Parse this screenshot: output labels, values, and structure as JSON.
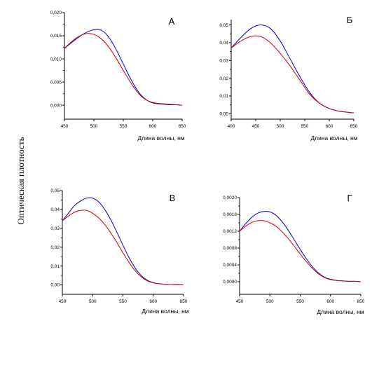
{
  "figure": {
    "ylabel": "Оптическая плотность"
  },
  "chart_data": [
    {
      "type": "line",
      "panel_label": "А",
      "xlabel": "Длина волны, нм",
      "xlim": [
        450,
        650
      ],
      "ylim": [
        -0.003,
        0.02
      ],
      "xticks": [
        "450",
        "500",
        "550",
        "600",
        "650"
      ],
      "yticks": [
        "0,000",
        "0,005",
        "0,010",
        "0,015",
        "0,020"
      ],
      "x": [
        450,
        460,
        470,
        480,
        490,
        500,
        510,
        520,
        530,
        540,
        550,
        560,
        570,
        580,
        590,
        600,
        610,
        620,
        630,
        640,
        650
      ],
      "series": [
        {
          "color": "#0000cc",
          "values": [
            0.0123,
            0.0133,
            0.0143,
            0.0152,
            0.0159,
            0.0163,
            0.0163,
            0.0155,
            0.0138,
            0.0115,
            0.0089,
            0.0063,
            0.004,
            0.0022,
            0.0011,
            0.0005,
            0.0003,
            0.0002,
            0.0001,
            0.0001,
            0.0
          ]
        },
        {
          "color": "#cc0000",
          "values": [
            0.0123,
            0.0135,
            0.0145,
            0.0152,
            0.0155,
            0.0153,
            0.0146,
            0.0134,
            0.0117,
            0.0097,
            0.0075,
            0.0054,
            0.0035,
            0.002,
            0.0011,
            0.0006,
            0.0004,
            0.0003,
            0.0002,
            0.0001,
            0.0
          ]
        }
      ]
    },
    {
      "type": "line",
      "panel_label": "Б",
      "xlabel": "Длина волны, нм",
      "xlim": [
        400,
        650
      ],
      "ylim": [
        -0.003,
        0.053
      ],
      "xticks": [
        "400",
        "450",
        "500",
        "550",
        "600",
        "650"
      ],
      "yticks": [
        "0,00",
        "0,01",
        "0,02",
        "0,03",
        "0,04",
        "0,05"
      ],
      "x": [
        400,
        420,
        440,
        460,
        480,
        500,
        520,
        540,
        560,
        580,
        600,
        620,
        640,
        650
      ],
      "series": [
        {
          "color": "#0000cc",
          "values": [
            0.037,
            0.043,
            0.048,
            0.05,
            0.048,
            0.041,
            0.031,
            0.021,
            0.012,
            0.006,
            0.003,
            0.0015,
            0.0008,
            0.0005
          ]
        },
        {
          "color": "#cc0000",
          "values": [
            0.037,
            0.041,
            0.0435,
            0.0435,
            0.04,
            0.034,
            0.027,
            0.019,
            0.011,
            0.006,
            0.003,
            0.0015,
            0.0008,
            0.0005
          ]
        }
      ]
    },
    {
      "type": "line",
      "panel_label": "В",
      "xlabel": "Длина волны, нм",
      "xlim": [
        450,
        650
      ],
      "ylim": [
        -0.005,
        0.05
      ],
      "xticks": [
        "450",
        "500",
        "550",
        "600",
        "650"
      ],
      "yticks": [
        "0,00",
        "0,01",
        "0,02",
        "0,03",
        "0,04",
        "0,05"
      ],
      "x": [
        450,
        460,
        470,
        480,
        490,
        500,
        510,
        520,
        530,
        540,
        550,
        560,
        570,
        580,
        590,
        600,
        610,
        620,
        630,
        640,
        650
      ],
      "series": [
        {
          "color": "#0000cc",
          "values": [
            0.034,
            0.038,
            0.042,
            0.0445,
            0.046,
            0.046,
            0.044,
            0.04,
            0.0345,
            0.028,
            0.021,
            0.0145,
            0.009,
            0.005,
            0.0025,
            0.0012,
            0.0006,
            0.0003,
            0.0002,
            0.0001,
            0.0
          ]
        },
        {
          "color": "#cc0000",
          "values": [
            0.034,
            0.0365,
            0.0385,
            0.0395,
            0.0395,
            0.038,
            0.0355,
            0.032,
            0.0275,
            0.0225,
            0.017,
            0.012,
            0.0075,
            0.0043,
            0.0022,
            0.0011,
            0.0006,
            0.0003,
            0.0002,
            0.0001,
            0.0
          ]
        }
      ]
    },
    {
      "type": "line",
      "panel_label": "Г",
      "xlabel": "Длина волны, нм",
      "xlim": [
        450,
        650
      ],
      "ylim": [
        -0.0003,
        0.002
      ],
      "xticks": [
        "450",
        "500",
        "550",
        "600",
        "650"
      ],
      "yticks": [
        "0,0000",
        "0,0004",
        "0,0008",
        "0,0012",
        "0,0016",
        "0,0020"
      ],
      "x": [
        450,
        460,
        470,
        480,
        490,
        500,
        510,
        520,
        530,
        540,
        550,
        560,
        570,
        580,
        590,
        600,
        610,
        620,
        630,
        640,
        650
      ],
      "series": [
        {
          "color": "#0000cc",
          "values": [
            0.0012,
            0.00138,
            0.00153,
            0.00163,
            0.00167,
            0.00166,
            0.00158,
            0.00143,
            0.00123,
            0.001,
            0.00077,
            0.00055,
            0.00036,
            0.00021,
            0.00011,
            6e-05,
            3e-05,
            2e-05,
            1e-05,
            1e-05,
            0.0
          ]
        },
        {
          "color": "#cc0000",
          "values": [
            0.0012,
            0.00132,
            0.00141,
            0.00145,
            0.00145,
            0.0014,
            0.00132,
            0.00119,
            0.00103,
            0.00085,
            0.00066,
            0.00048,
            0.00032,
            0.00019,
            0.0001,
            5e-05,
            3e-05,
            2e-05,
            1e-05,
            1e-05,
            0.0
          ]
        }
      ]
    }
  ]
}
